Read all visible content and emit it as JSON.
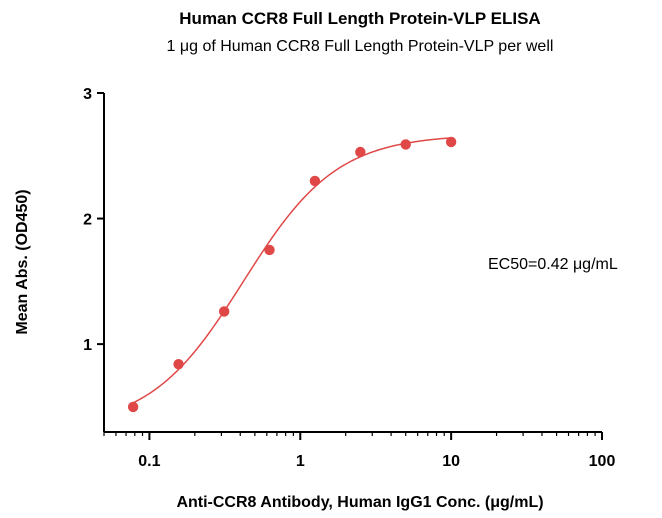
{
  "chart_data": {
    "type": "scatter",
    "title": "Human CCR8 Full Length Protein-VLP ELISA",
    "subtitle": "1 μg of Human CCR8 Full Length Protein-VLP per well",
    "xlabel": "Anti-CCR8 Antibody, Human IgG1 Conc. (μg/mL)",
    "ylabel": "Mean Abs. (OD450)",
    "xscale": "log",
    "xlim": [
      0.05,
      100
    ],
    "ylim": [
      0.3,
      3.0
    ],
    "xticks": [
      0.1,
      1,
      10,
      100
    ],
    "xtick_labels": [
      "0.1",
      "1",
      "10",
      "100"
    ],
    "yticks": [
      1,
      2,
      3
    ],
    "ytick_labels": [
      "1",
      "2",
      "3"
    ],
    "grid": false,
    "series": [
      {
        "name": "Mean Abs. (OD450)",
        "color": "#e04848",
        "x": [
          0.078,
          0.156,
          0.313,
          0.625,
          1.25,
          2.5,
          5,
          10
        ],
        "y": [
          0.5,
          0.84,
          1.26,
          1.75,
          2.3,
          2.53,
          2.59,
          2.61
        ]
      }
    ],
    "fit": {
      "model": "4PL",
      "bottom": 0.33,
      "top": 2.67,
      "ec50": 0.42,
      "hill": 1.4,
      "x_range": [
        0.078,
        10
      ],
      "color": "#e04848"
    },
    "annotation": "EC50=0.42 μg/mL"
  }
}
